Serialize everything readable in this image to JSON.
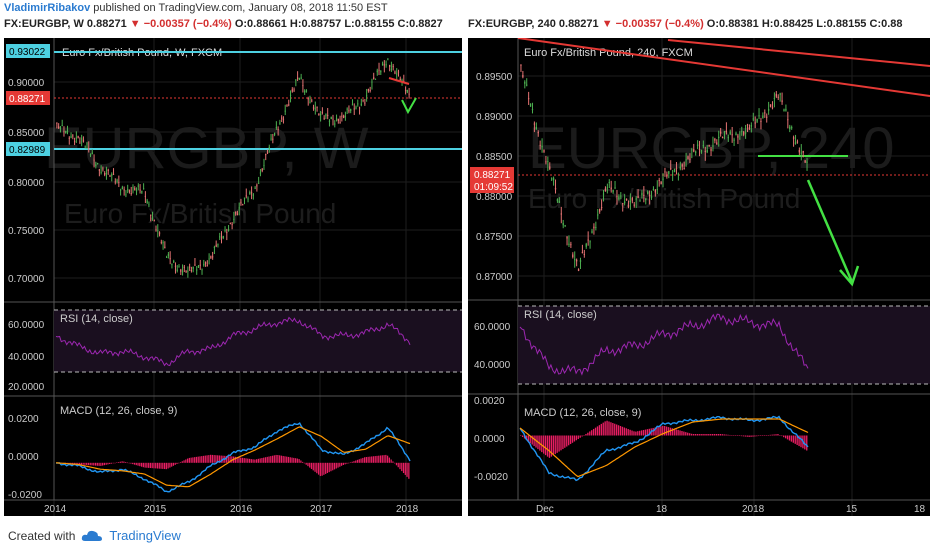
{
  "header": {
    "author": "VladimirRibakov",
    "published": "published on TradingView.com, January 08, 2018 11:50 EST"
  },
  "left": {
    "symbol_line": "FX:EURGBP, W 0.88271 ▼ −0.00357 (−0.4%) O:0.88661 H:0.88757 L:0.88155 C:0.8827",
    "parts": {
      "sym": "FX:EURGBP, W",
      "price": "0.88271",
      "chg": "▼ −0.00357 (−0.4%)",
      "o": "O:0.88661",
      "h": "H:0.88757",
      "l": "L:0.88155",
      "c": "C:0.8827"
    },
    "title": "Euro Fx/British Pound, W, FXCM",
    "watermark_big": "EURGBP, W",
    "watermark_small": "Euro Fx/British Pound",
    "price_ticks": [
      "0.90000",
      "0.85000",
      "0.80000",
      "0.75000",
      "0.70000"
    ],
    "labels": {
      "upper": "0.93022",
      "current": "0.88271",
      "lower": "0.82989"
    },
    "rsi_title": "RSI (14, close)",
    "rsi_ticks": [
      "60.0000",
      "40.0000",
      "20.0000"
    ],
    "macd_title": "MACD (12, 26, close, 9)",
    "macd_ticks": [
      "0.0200",
      "0.0000",
      "-0.0200"
    ],
    "time_ticks": [
      "2014",
      "2015",
      "2016",
      "2017",
      "2018"
    ]
  },
  "right": {
    "parts": {
      "sym": "FX:EURGBP, 240",
      "price": "0.88271",
      "chg": "▼ −0.00357 (−0.4%)",
      "o": "O:0.88381",
      "h": "H:0.88425",
      "l": "L:0.88155",
      "c": "C:0.88"
    },
    "title": "Euro Fx/British Pound, 240, FXCM",
    "watermark_big": "EURGBP, 240",
    "watermark_small": "Euro Fx/British Pound",
    "price_ticks": [
      "0.89500",
      "0.89000",
      "0.88500",
      "0.88000",
      "0.87500",
      "0.87000"
    ],
    "labels": {
      "current": "0.88271",
      "countdown": "01:09:52"
    },
    "rsi_title": "RSI (14, close)",
    "rsi_ticks": [
      "60.0000",
      "40.0000"
    ],
    "macd_title": "MACD (12, 26, close, 9)",
    "macd_ticks": [
      "0.0020",
      "0.0000",
      "-0.0020"
    ],
    "time_ticks": [
      "Dec",
      "18",
      "2018",
      "15",
      "18"
    ]
  },
  "footer": {
    "created_with": "Created with",
    "brand": "TradingView"
  },
  "colors": {
    "up": "#4caf50",
    "down": "#e57373",
    "rsi": "#9c27b0",
    "macd": "#2196f3",
    "signal": "#ff9800",
    "hist": "#e91e63",
    "cyan": "#4dd0e1",
    "trend": "#e53935",
    "arrow": "#43e043"
  },
  "chart_data": [
    {
      "type": "line",
      "title": "Euro Fx/British Pound, W, FXCM",
      "panes": [
        "price",
        "RSI (14, close)",
        "MACD (12, 26, close, 9)"
      ],
      "x": [
        "2013.7",
        "2014.0",
        "2014.3",
        "2014.6",
        "2014.9",
        "2015.2",
        "2015.5",
        "2015.8",
        "2016.0",
        "2016.3",
        "2016.5",
        "2016.8",
        "2017.0",
        "2017.3",
        "2017.6",
        "2017.7",
        "2018.0"
      ],
      "price": [
        0.85,
        0.84,
        0.81,
        0.79,
        0.785,
        0.72,
        0.705,
        0.72,
        0.76,
        0.79,
        0.85,
        0.9,
        0.86,
        0.86,
        0.88,
        0.92,
        0.883
      ],
      "ylim": [
        0.69,
        0.94
      ],
      "rsi": [
        55,
        45,
        38,
        40,
        35,
        28,
        40,
        42,
        55,
        62,
        68,
        70,
        55,
        55,
        58,
        66,
        50
      ],
      "macd": [
        0.0,
        -0.002,
        -0.006,
        -0.004,
        -0.01,
        -0.018,
        -0.012,
        -0.002,
        0.006,
        0.01,
        0.02,
        0.025,
        0.008,
        0.005,
        0.012,
        0.022,
        0.002
      ],
      "levels": [
        0.93022,
        0.82989
      ],
      "current": 0.88271
    },
    {
      "type": "line",
      "title": "Euro Fx/British Pound, 240, FXCM",
      "panes": [
        "price",
        "RSI (14, close)",
        "MACD (12, 26, close, 9)"
      ],
      "x": [
        "Nov 29",
        "Dec 4",
        "Dec 8",
        "Dec 12",
        "Dec 16",
        "Dec 20",
        "Dec 24",
        "Dec 28",
        "Jan 1",
        "Jan 4",
        "Jan 8"
      ],
      "price": [
        0.894,
        0.882,
        0.87,
        0.88,
        0.878,
        0.881,
        0.884,
        0.886,
        0.887,
        0.891,
        0.8827
      ],
      "ylim": [
        0.868,
        0.898
      ],
      "rsi": [
        60,
        35,
        32,
        45,
        48,
        55,
        60,
        65,
        62,
        60,
        33
      ],
      "macd": [
        0.0005,
        -0.0025,
        -0.003,
        -0.001,
        -0.0005,
        0.0008,
        0.001,
        0.0012,
        0.001,
        0.0012,
        -0.0008
      ],
      "support": 0.885,
      "current": 0.88271
    }
  ]
}
